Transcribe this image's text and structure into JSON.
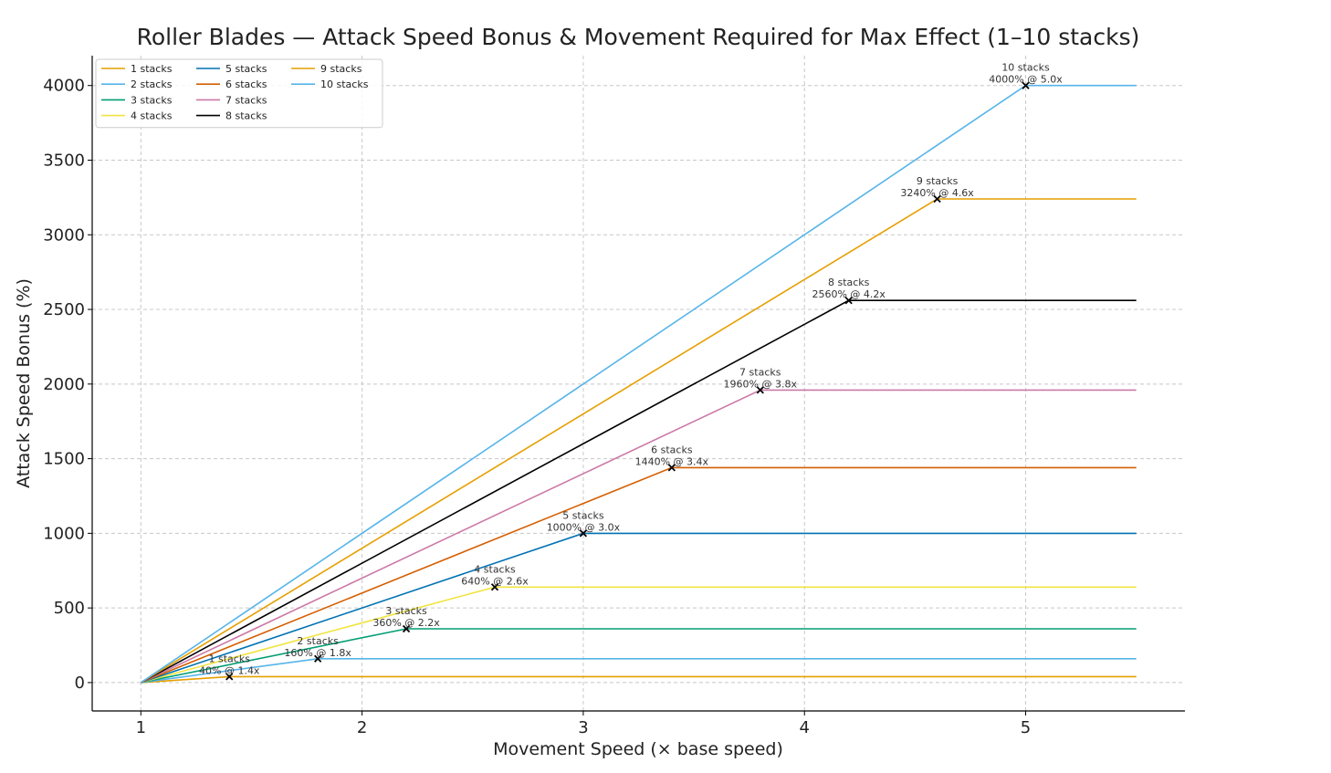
{
  "chart_data": {
    "type": "line",
    "title": "Roller Blades — Attack Speed Bonus & Movement Required for Max Effect (1–10 stacks)",
    "xlabel": "Movement Speed (× base speed)",
    "ylabel": "Attack Speed Bonus (%)",
    "xlim": [
      0.78,
      5.72
    ],
    "ylim": [
      -190,
      4200
    ],
    "xticks": [
      1,
      2,
      3,
      4,
      5
    ],
    "yticks": [
      0,
      500,
      1000,
      1500,
      2000,
      2500,
      3000,
      3500,
      4000
    ],
    "grid": true,
    "legend": "top-left",
    "legend_columns": 3,
    "x_end": 5.5,
    "series": [
      {
        "name": "1 stacks",
        "color": "#E69F00",
        "x": [
          1.0,
          1.4,
          5.5
        ],
        "values": [
          0,
          40,
          40
        ],
        "max_x": 1.4,
        "max_y": 40,
        "label1": "1 stacks",
        "label2": "40% @ 1.4x"
      },
      {
        "name": "2 stacks",
        "color": "#56B4E9",
        "x": [
          1.0,
          1.8,
          5.5
        ],
        "values": [
          0,
          160,
          160
        ],
        "max_x": 1.8,
        "max_y": 160,
        "label1": "2 stacks",
        "label2": "160% @ 1.8x"
      },
      {
        "name": "3 stacks",
        "color": "#009E73",
        "x": [
          1.0,
          2.2,
          5.5
        ],
        "values": [
          0,
          360,
          360
        ],
        "max_x": 2.2,
        "max_y": 360,
        "label1": "3 stacks",
        "label2": "360% @ 2.2x"
      },
      {
        "name": "4 stacks",
        "color": "#F0E442",
        "x": [
          1.0,
          2.6,
          5.5
        ],
        "values": [
          0,
          640,
          640
        ],
        "max_x": 2.6,
        "max_y": 640,
        "label1": "4 stacks",
        "label2": "640% @ 2.6x"
      },
      {
        "name": "5 stacks",
        "color": "#0072B2",
        "x": [
          1.0,
          3.0,
          5.5
        ],
        "values": [
          0,
          1000,
          1000
        ],
        "max_x": 3.0,
        "max_y": 1000,
        "label1": "5 stacks",
        "label2": "1000% @ 3.0x"
      },
      {
        "name": "6 stacks",
        "color": "#D55E00",
        "x": [
          1.0,
          3.4,
          5.5
        ],
        "values": [
          0,
          1440,
          1440
        ],
        "max_x": 3.4,
        "max_y": 1440,
        "label1": "6 stacks",
        "label2": "1440% @ 3.4x"
      },
      {
        "name": "7 stacks",
        "color": "#CC79A7",
        "x": [
          1.0,
          3.8,
          5.5
        ],
        "values": [
          0,
          1960,
          1960
        ],
        "max_x": 3.8,
        "max_y": 1960,
        "label1": "7 stacks",
        "label2": "1960% @ 3.8x"
      },
      {
        "name": "8 stacks",
        "color": "#000000",
        "x": [
          1.0,
          4.2,
          5.5
        ],
        "values": [
          0,
          2560,
          2560
        ],
        "max_x": 4.2,
        "max_y": 2560,
        "label1": "8 stacks",
        "label2": "2560% @ 4.2x"
      },
      {
        "name": "9 stacks",
        "color": "#E69F00",
        "x": [
          1.0,
          4.6,
          5.5
        ],
        "values": [
          0,
          3240,
          3240
        ],
        "max_x": 4.6,
        "max_y": 3240,
        "label1": "9 stacks",
        "label2": "3240% @ 4.6x"
      },
      {
        "name": "10 stacks",
        "color": "#56B4E9",
        "x": [
          1.0,
          5.0,
          5.5
        ],
        "values": [
          0,
          4000,
          4000
        ],
        "max_x": 5.0,
        "max_y": 4000,
        "label1": "10 stacks",
        "label2": "4000% @ 5.0x"
      }
    ]
  }
}
